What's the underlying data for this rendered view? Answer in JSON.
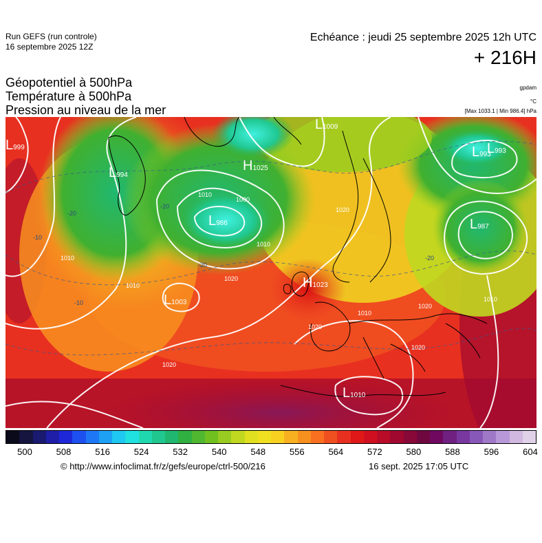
{
  "header": {
    "run": "Run GEFS (run controle)",
    "run_date": "16 septembre 2025 12Z",
    "valid_time": "Echéance : jeudi 25 septembre 2025 12h UTC",
    "lead": "+ 216H"
  },
  "parameters": [
    "Géopotentiel à 500hPa",
    "Température à 500hPa",
    "Pression au niveau de la mer"
  ],
  "units": {
    "geopotential": "gpdam",
    "temperature": "°C",
    "pressure": "[Max 1033.1 | Min 986.4] hPa"
  },
  "pressure_centers": [
    {
      "type": "L",
      "value": "999"
    },
    {
      "type": "L",
      "value": "994"
    },
    {
      "type": "H",
      "value": "1025"
    },
    {
      "type": "L",
      "value": "1009"
    },
    {
      "type": "L",
      "value": "986"
    },
    {
      "type": "L",
      "value": "993"
    },
    {
      "type": "L",
      "value": "993"
    },
    {
      "type": "L",
      "value": "987"
    },
    {
      "type": "H",
      "value": "1023"
    },
    {
      "type": "L",
      "value": "1003"
    },
    {
      "type": "L",
      "value": "1010"
    }
  ],
  "isobar_labels": [
    "1010",
    "1000",
    "1010",
    "1020",
    "1020",
    "1010",
    "1020",
    "1010",
    "1020",
    "1020",
    "1010",
    "1010",
    "1020"
  ],
  "temperature_labels": [
    "-20",
    "-20",
    "-20",
    "-20",
    "-10",
    "-10"
  ],
  "color_scale": {
    "labels": [
      "500",
      "508",
      "516",
      "524",
      "532",
      "540",
      "548",
      "556",
      "564",
      "572",
      "580",
      "588",
      "596",
      "604"
    ],
    "colors": [
      "#0a0a1a",
      "#151540",
      "#1a1a70",
      "#1e1ea8",
      "#1e28d8",
      "#1e50f0",
      "#1e78f5",
      "#1ea0f5",
      "#1ec8f0",
      "#20e0e0",
      "#20d8b0",
      "#20c890",
      "#20b870",
      "#30b040",
      "#50b830",
      "#70c020",
      "#98cc20",
      "#c0d820",
      "#e0e020",
      "#f0e020",
      "#f8d020",
      "#f8b020",
      "#f89020",
      "#f87020",
      "#f05020",
      "#e83020",
      "#e01818",
      "#d01020",
      "#b80c28",
      "#a00830",
      "#880838",
      "#700840",
      "#700860",
      "#702080",
      "#7838a0",
      "#8858b8",
      "#a078c8",
      "#b898d8",
      "#d0b8e0",
      "#e0d0e8"
    ]
  },
  "footer": {
    "credit": "© http://www.infoclimat.fr/z/gefs/europe/ctrl-500/216",
    "timestamp": "16 sept. 2025 17:05 UTC"
  }
}
